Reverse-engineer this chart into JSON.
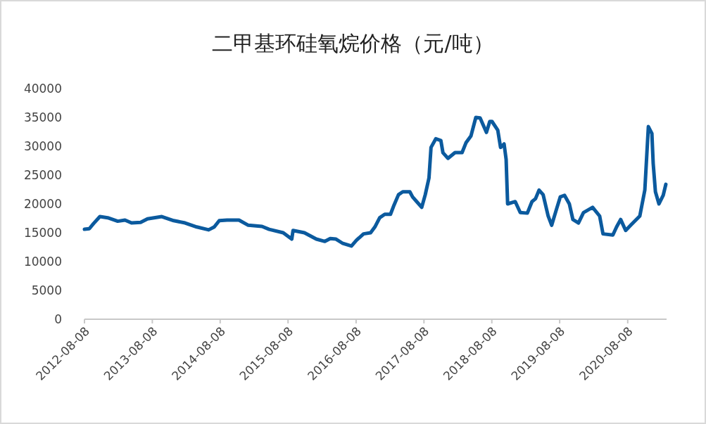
{
  "chart_data": {
    "type": "line",
    "title": "二甲基环硅氧烷价格（元/吨）",
    "color": "#0b5a9e",
    "line_style": "solid",
    "marker": "none",
    "grid": false,
    "x": [
      "2012-08-08",
      "2012-09-03",
      "2012-09-26",
      "2012-10-30",
      "2012-12-11",
      "2013-02-03",
      "2013-03-14",
      "2013-04-18",
      "2013-06-06",
      "2013-07-13",
      "2013-09-28",
      "2013-12-01",
      "2014-01-31",
      "2014-04-04",
      "2014-06-07",
      "2014-07-07",
      "2014-08-03",
      "2014-09-14",
      "2014-11-17",
      "2015-01-06",
      "2015-03-21",
      "2015-04-28",
      "2015-07-13",
      "2015-08-28",
      "2015-09-04",
      "2015-11-04",
      "2016-01-07",
      "2016-02-22",
      "2016-03-22",
      "2016-04-22",
      "2016-05-26",
      "2016-07-14",
      "2016-08-10",
      "2016-09-17",
      "2016-10-25",
      "2016-11-17",
      "2016-12-13",
      "2017-01-09",
      "2017-02-09",
      "2017-02-28",
      "2017-03-24",
      "2017-04-16",
      "2017-05-24",
      "2017-06-08",
      "2017-06-30",
      "2017-07-27",
      "2017-08-15",
      "2017-09-04",
      "2017-09-15",
      "2017-10-11",
      "2017-11-07",
      "2017-11-18",
      "2017-12-15",
      "2018-01-22",
      "2018-03-01",
      "2018-03-22",
      "2018-04-18",
      "2018-05-14",
      "2018-06-06",
      "2018-07-10",
      "2018-07-28",
      "2018-08-09",
      "2018-09-09",
      "2018-09-24",
      "2018-10-13",
      "2018-10-24",
      "2018-11-01",
      "2018-12-12",
      "2019-01-08",
      "2019-02-15",
      "2019-03-12",
      "2019-03-31",
      "2019-04-19",
      "2019-05-11",
      "2019-06-07",
      "2019-06-26",
      "2019-07-22",
      "2019-08-11",
      "2019-09-03",
      "2019-09-29",
      "2019-10-18",
      "2019-11-17",
      "2019-12-14",
      "2020-02-01",
      "2020-03-10",
      "2020-03-28",
      "2020-05-20",
      "2020-06-09",
      "2020-07-01",
      "2020-07-28",
      "2020-08-24",
      "2020-10-12",
      "2020-11-08",
      "2020-11-27",
      "2020-12-16",
      "2020-12-23",
      "2021-01-04",
      "2021-01-23",
      "2021-02-15",
      "2021-03-01"
    ],
    "values": [
      15600,
      15700,
      16600,
      17800,
      17600,
      17000,
      17200,
      16700,
      16800,
      17400,
      17800,
      17100,
      16700,
      16000,
      15500,
      16000,
      17100,
      17200,
      17200,
      16300,
      16100,
      15600,
      15000,
      13900,
      15400,
      15000,
      13900,
      13500,
      14000,
      13900,
      13200,
      12700,
      13700,
      14800,
      15000,
      16000,
      17600,
      18200,
      18200,
      19800,
      21600,
      22100,
      22100,
      21200,
      20400,
      19400,
      21600,
      24500,
      29800,
      31300,
      31000,
      28900,
      27900,
      28900,
      28900,
      30600,
      31800,
      35000,
      34900,
      32400,
      34300,
      34300,
      32800,
      29800,
      30400,
      27700,
      20000,
      20400,
      18500,
      18400,
      20400,
      20900,
      22400,
      21600,
      17900,
      16300,
      19100,
      21200,
      21500,
      20000,
      17300,
      16700,
      18500,
      19400,
      17900,
      14800,
      14600,
      16000,
      17300,
      15400,
      16300,
      17900,
      22400,
      33400,
      32200,
      27000,
      22100,
      20000,
      21500,
      23400
    ],
    "xlim": [
      "2012-08-08",
      "2021-03-05"
    ],
    "xticks": [
      "2012-08-08",
      "2013-08-08",
      "2014-08-08",
      "2015-08-08",
      "2016-08-08",
      "2017-08-08",
      "2018-08-08",
      "2019-08-08",
      "2020-08-08"
    ],
    "ylim": [
      0,
      40000
    ],
    "yticks": [
      0,
      5000,
      10000,
      15000,
      20000,
      25000,
      30000,
      35000,
      40000
    ]
  }
}
